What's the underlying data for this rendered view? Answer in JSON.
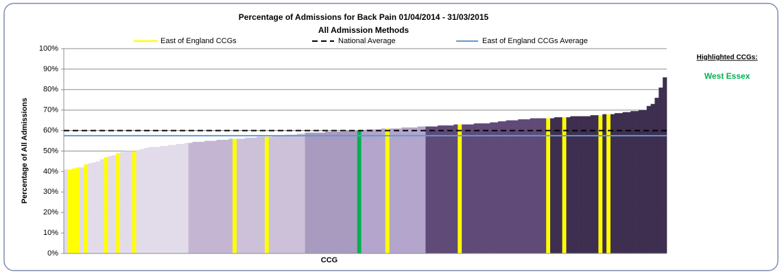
{
  "chart_data": {
    "type": "bar",
    "title": "Percentage of Admissions for Back Pain 01/04/2014 - 31/03/2015",
    "subtitle": "All Admission Methods",
    "xlabel": "CCG",
    "ylabel": "Percentage of All Admissions",
    "ylim": [
      0,
      100
    ],
    "yticks": [
      {
        "value": 0,
        "label": "0%"
      },
      {
        "value": 10,
        "label": "10%"
      },
      {
        "value": 20,
        "label": "20%"
      },
      {
        "value": 30,
        "label": "30%"
      },
      {
        "value": 40,
        "label": "40%"
      },
      {
        "value": 50,
        "label": "50%"
      },
      {
        "value": 60,
        "label": "60%"
      },
      {
        "value": 70,
        "label": "70%"
      },
      {
        "value": 80,
        "label": "80%"
      },
      {
        "value": 90,
        "label": "90%"
      },
      {
        "value": 100,
        "label": "100%"
      }
    ],
    "grid": true,
    "values": [
      41,
      41,
      41.5,
      42,
      42,
      43.5,
      44,
      44.5,
      45,
      46,
      47,
      47.5,
      48,
      49,
      49.5,
      50,
      50,
      50,
      50.5,
      51,
      51.5,
      52,
      52,
      52,
      52.5,
      52.5,
      53,
      53,
      53.5,
      53.5,
      54,
      54,
      54.5,
      54.5,
      54.5,
      55,
      55,
      55,
      55.5,
      55.5,
      55.5,
      56,
      56,
      56,
      56,
      56.5,
      56.5,
      56.5,
      57,
      57,
      57,
      57,
      57.5,
      57.5,
      57.5,
      58,
      58,
      58,
      58.5,
      58.5,
      59,
      59,
      59,
      59,
      59,
      59.5,
      59.5,
      59.5,
      59.5,
      59.5,
      60,
      60,
      60,
      60,
      60,
      60.5,
      60.5,
      60.5,
      60.5,
      61,
      61,
      61,
      61,
      61,
      61.5,
      61.5,
      61.5,
      61.5,
      62,
      62,
      62,
      62,
      62,
      62.5,
      62.5,
      62.5,
      62.5,
      63,
      63,
      63,
      63,
      63,
      63.5,
      63.5,
      63.5,
      63.5,
      64,
      64,
      64.5,
      64.5,
      65,
      65,
      65,
      65.5,
      65.5,
      65.5,
      66,
      66,
      66,
      66,
      66,
      66,
      66.5,
      66.5,
      66.5,
      66.5,
      67,
      67,
      67,
      67,
      67,
      67.5,
      67.5,
      67.5,
      68,
      68,
      68,
      68.5,
      68.5,
      69,
      69,
      69.5,
      69.5,
      70,
      70,
      72,
      73,
      76,
      81,
      86
    ],
    "colors": [
      "#e2dcea",
      "#ffff00",
      "#ffff00",
      "#ffff00",
      "#e2dcea",
      "#ffff00",
      "#e2dcea",
      "#e2dcea",
      "#e2dcea",
      "#e2dcea",
      "#ffff00",
      "#e2dcea",
      "#e2dcea",
      "#ffff00",
      "#e2dcea",
      "#e2dcea",
      "#e2dcea",
      "#ffff00",
      "#e2dcea",
      "#e2dcea",
      "#e2dcea",
      "#e2dcea",
      "#e2dcea",
      "#e2dcea",
      "#e2dcea",
      "#e2dcea",
      "#e2dcea",
      "#e2dcea",
      "#e2dcea",
      "#e2dcea",
      "#e2dcea",
      "#c4b6d3",
      "#c4b6d3",
      "#c4b6d3",
      "#c4b6d3",
      "#c4b6d3",
      "#c4b6d3",
      "#c4b6d3",
      "#c4b6d3",
      "#c4b6d3",
      "#c4b6d3",
      "#c4b6d3",
      "#ffff00",
      "#cdc1da",
      "#cdc1da",
      "#cdc1da",
      "#cdc1da",
      "#cdc1da",
      "#cdc1da",
      "#cdc1da",
      "#ffff00",
      "#cdc1da",
      "#cdc1da",
      "#cdc1da",
      "#cdc1da",
      "#cdc1da",
      "#cdc1da",
      "#cdc1da",
      "#cdc1da",
      "#cdc1da",
      "#a99bc0",
      "#a99bc0",
      "#a99bc0",
      "#a99bc0",
      "#a99bc0",
      "#a99bc0",
      "#a99bc0",
      "#a99bc0",
      "#a99bc0",
      "#a99bc0",
      "#a99bc0",
      "#a99bc0",
      "#a99bc0",
      "#00b050",
      "#b3a5cb",
      "#b3a5cb",
      "#b3a5cb",
      "#b3a5cb",
      "#b3a5cb",
      "#b3a5cb",
      "#ffff00",
      "#b3a5cb",
      "#b3a5cb",
      "#b3a5cb",
      "#b3a5cb",
      "#b3a5cb",
      "#b3a5cb",
      "#b3a5cb",
      "#b3a5cb",
      "#b3a5cb",
      "#5f4a78",
      "#5f4a78",
      "#5f4a78",
      "#5f4a78",
      "#5f4a78",
      "#5f4a78",
      "#5f4a78",
      "#5f4a78",
      "#ffff00",
      "#5f4a78",
      "#5f4a78",
      "#5f4a78",
      "#5f4a78",
      "#5f4a78",
      "#5f4a78",
      "#5f4a78",
      "#5f4a78",
      "#5f4a78",
      "#5f4a78",
      "#5f4a78",
      "#5f4a78",
      "#5f4a78",
      "#5f4a78",
      "#5f4a78",
      "#5f4a78",
      "#5f4a78",
      "#5f4a78",
      "#5f4a78",
      "#5f4a78",
      "#5f4a78",
      "#ffff00",
      "#3e2f50",
      "#3e2f50",
      "#3e2f50",
      "#ffff00",
      "#3e2f50",
      "#3e2f50",
      "#3e2f50",
      "#3e2f50",
      "#3e2f50",
      "#3e2f50",
      "#3e2f50",
      "#3e2f50",
      "#ffff00",
      "#3e2f50",
      "#ffff00",
      "#3e2f50",
      "#3e2f50",
      "#3e2f50",
      "#3e2f50",
      "#3e2f50",
      "#3e2f50",
      "#3e2f50",
      "#3e2f50",
      "#3e2f50",
      "#3e2f50",
      "#3e2f50",
      "#3e2f50",
      "#3e2f50",
      "#3e2f50"
    ],
    "highlight_series": {
      "name": "East of England CCGs",
      "color": "#ffff00"
    },
    "reference_lines": [
      {
        "name": "National Average",
        "value": 60,
        "color": "#000000",
        "dash": true
      },
      {
        "name": "East of England CCGs Average",
        "value": 57.5,
        "color": "#5b9bd5",
        "dash": false
      }
    ],
    "highlighted": {
      "title": "Highlighted CCGs:",
      "items": [
        {
          "name": "West Essex",
          "color": "#00b050"
        }
      ]
    }
  }
}
